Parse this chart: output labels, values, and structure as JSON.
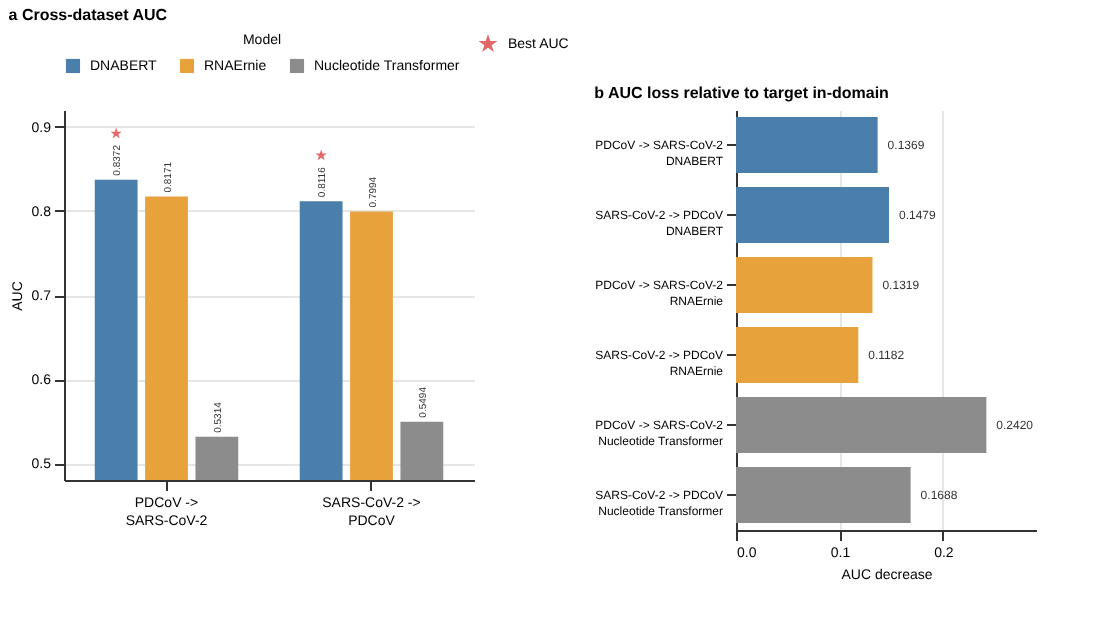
{
  "chart_data": [
    {
      "type": "bar",
      "title": "a Cross-dataset AUC",
      "ylabel": "AUC",
      "legend_title": "Model",
      "legend": "top",
      "categories": [
        "PDCoV ->\nSARS-CoV-2",
        "SARS-CoV-2 ->\nPDCoV"
      ],
      "series": [
        {
          "name": "DNABERT",
          "color": "#4a7eab",
          "values": [
            0.8372,
            0.8116
          ],
          "value_labels": [
            "0.8372",
            "0.8116"
          ]
        },
        {
          "name": "RNAErnie",
          "color": "#e8a23c",
          "values": [
            0.8171,
            0.7994
          ],
          "value_labels": [
            "0.8171",
            "0.7994"
          ]
        },
        {
          "name": "Nucleotide Transformer",
          "color": "#8c8c8c",
          "values": [
            0.5314,
            0.5494
          ],
          "value_labels": [
            "0.5314",
            "0.5494"
          ]
        },
        {
          "name": "Best AUC",
          "type": "scatter",
          "marker": "star",
          "color": "#d62728",
          "values": [
            0.892,
            0.866
          ]
        }
      ],
      "ylim": [
        0.48,
        0.92
      ],
      "yticks": [
        0.5,
        0.6,
        0.7,
        0.8,
        0.9
      ],
      "grid": "y"
    },
    {
      "type": "bar",
      "orientation": "horizontal",
      "title": "b AUC loss relative to target in-domain",
      "xlabel": "AUC decrease",
      "categories": [
        "PDCoV -> SARS-CoV-2\nDNABERT",
        "SARS-CoV-2 -> PDCoV\nDNABERT",
        "PDCoV -> SARS-CoV-2\nRNAErnie",
        "SARS-CoV-2 -> PDCoV\nRNAErnie",
        "PDCoV -> SARS-CoV-2\nNucleotide Transformer",
        "SARS-CoV-2 -> PDCoV\nNucleotide Transformer"
      ],
      "values": [
        0.1369,
        0.1479,
        0.1319,
        0.1182,
        0.242,
        0.1688
      ],
      "value_labels": [
        "0.1369",
        "0.1479",
        "0.1319",
        "0.1182",
        "0.2420",
        "0.1688"
      ],
      "colors": [
        "#4a7eab",
        "#4a7eab",
        "#e8a23c",
        "#e8a23c",
        "#8c8c8c",
        "#8c8c8c"
      ],
      "xlim": [
        0,
        0.29
      ],
      "xticks": [
        {
          "value": 0,
          "label": "0.0"
        },
        0.1,
        0.2
      ],
      "grid": "x"
    }
  ]
}
